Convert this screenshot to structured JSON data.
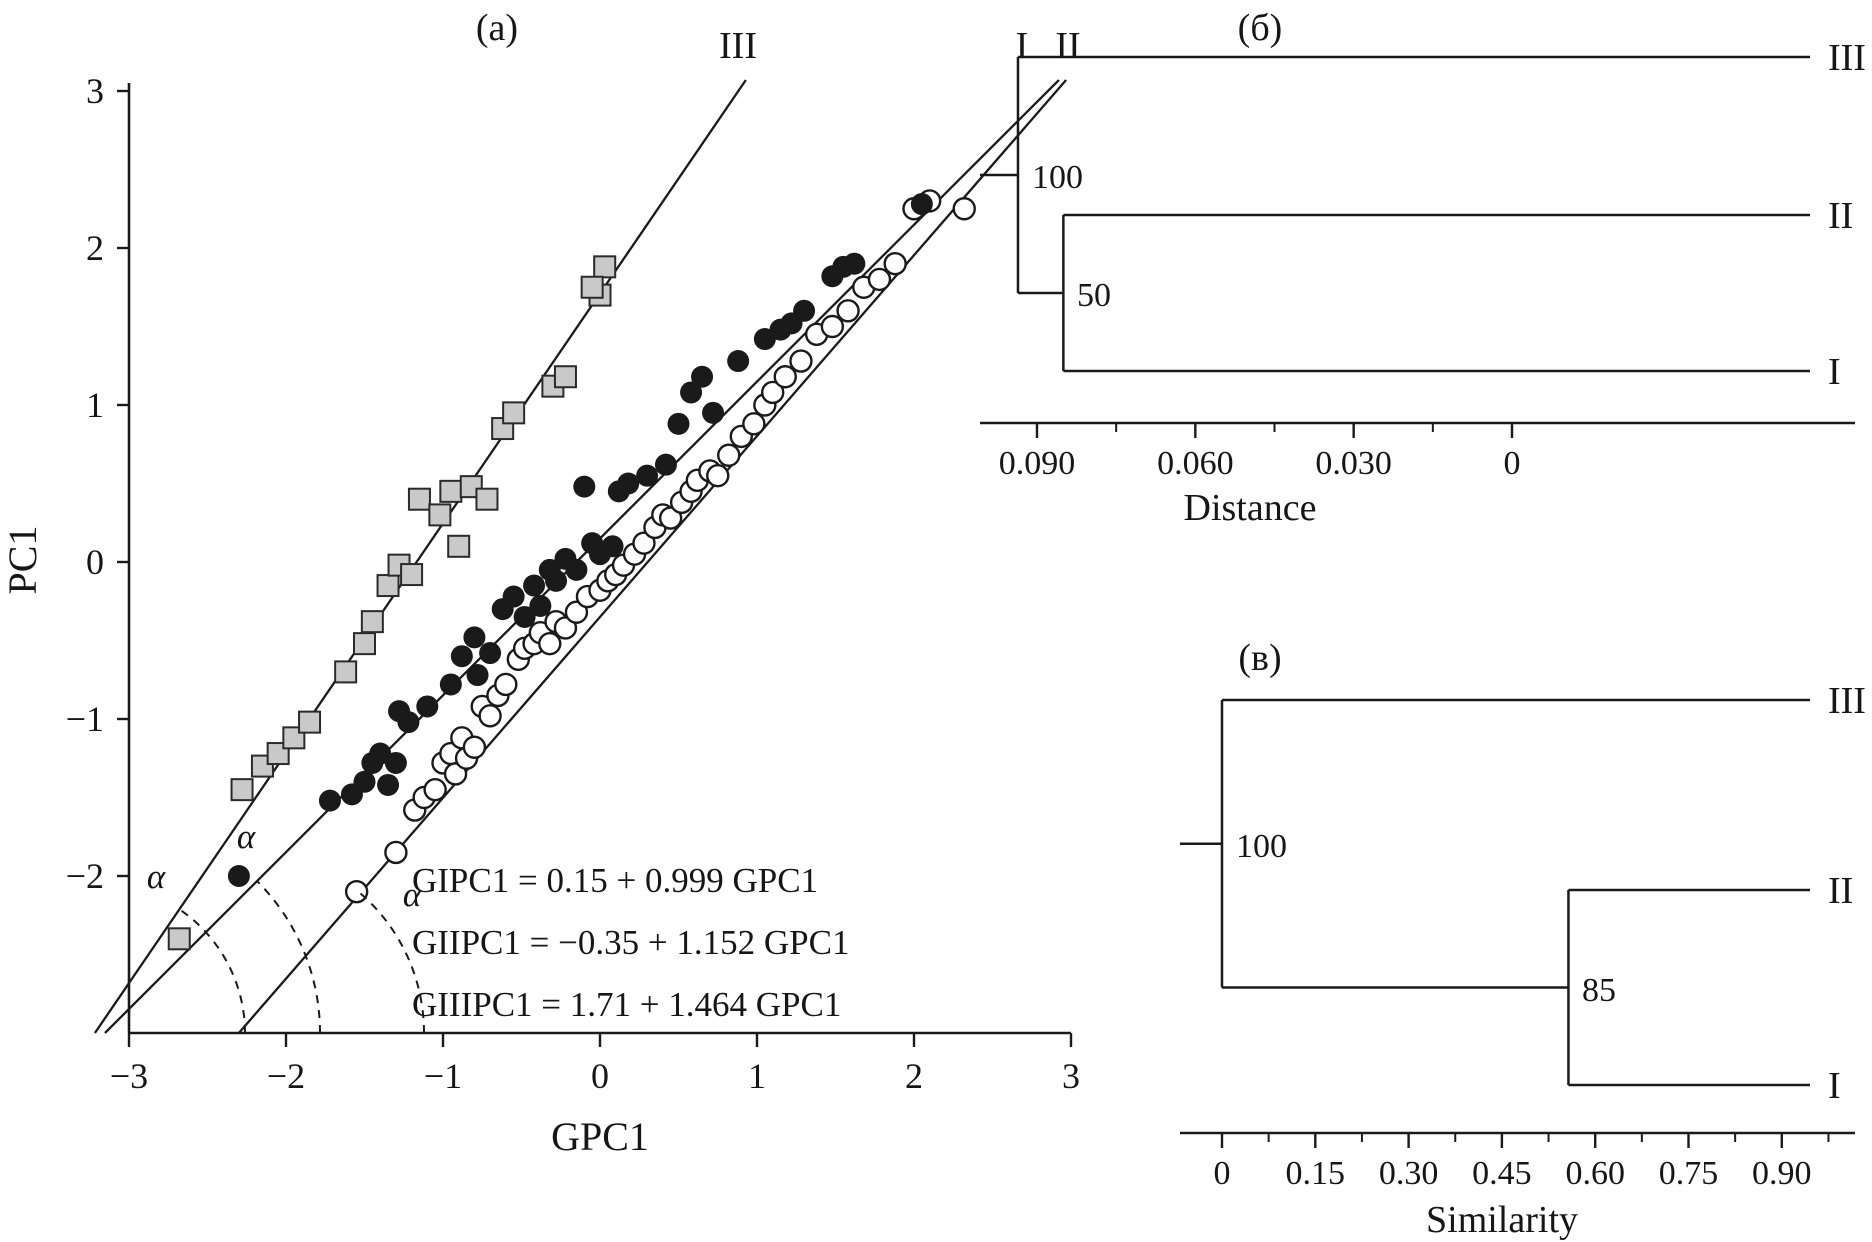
{
  "chart_data": [
    {
      "type": "scatter",
      "title": "(a)",
      "xlabel": "GPC1",
      "ylabel": "PC1",
      "xlim": [
        -3,
        3
      ],
      "ylim": [
        -3,
        3
      ],
      "grid": false,
      "x_ticks": [
        -3,
        -2,
        -1,
        0,
        1,
        2,
        3
      ],
      "x_tick_labels": [
        "−3",
        "−2",
        "−1",
        "0",
        "1",
        "2",
        "3"
      ],
      "y_ticks": [
        3,
        2,
        1,
        0,
        -1,
        -2
      ],
      "y_tick_labels": [
        "3",
        "2",
        "1",
        "0",
        "−1",
        "−2"
      ],
      "angle_label": "α",
      "lines": [
        {
          "label": "I",
          "intercept": 0.15,
          "slope": 0.999,
          "equation": "GIPC1 = 0.15 + 0.999 GPC1"
        },
        {
          "label": "II",
          "intercept": -0.35,
          "slope": 1.152,
          "equation": "GIIPC1 = −0.35 + 1.152 GPC1"
        },
        {
          "label": "III",
          "intercept": 1.71,
          "slope": 1.464,
          "equation": "GIIIPC1 = 1.71 + 1.464 GPC1"
        }
      ],
      "series": [
        {
          "name": "Group I",
          "marker": "filled-circle",
          "fill": "#1a1a1a",
          "stroke": "#1a1a1a",
          "points": [
            [
              -2.3,
              -2.0
            ],
            [
              -1.72,
              -1.52
            ],
            [
              -1.58,
              -1.48
            ],
            [
              -1.5,
              -1.4
            ],
            [
              -1.45,
              -1.28
            ],
            [
              -1.4,
              -1.22
            ],
            [
              -1.35,
              -1.42
            ],
            [
              -1.3,
              -1.28
            ],
            [
              -1.28,
              -0.95
            ],
            [
              -1.22,
              -1.02
            ],
            [
              -1.1,
              -0.92
            ],
            [
              -0.95,
              -0.78
            ],
            [
              -0.88,
              -0.6
            ],
            [
              -0.8,
              -0.48
            ],
            [
              -0.78,
              -0.72
            ],
            [
              -0.7,
              -0.58
            ],
            [
              -0.62,
              -0.3
            ],
            [
              -0.55,
              -0.22
            ],
            [
              -0.48,
              -0.35
            ],
            [
              -0.42,
              -0.15
            ],
            [
              -0.38,
              -0.28
            ],
            [
              -0.32,
              -0.05
            ],
            [
              -0.28,
              -0.12
            ],
            [
              -0.22,
              0.02
            ],
            [
              -0.15,
              -0.05
            ],
            [
              -0.1,
              0.48
            ],
            [
              -0.05,
              0.12
            ],
            [
              0.0,
              0.05
            ],
            [
              0.08,
              0.1
            ],
            [
              0.12,
              0.45
            ],
            [
              0.18,
              0.5
            ],
            [
              0.3,
              0.55
            ],
            [
              0.42,
              0.62
            ],
            [
              0.5,
              0.88
            ],
            [
              0.58,
              1.08
            ],
            [
              0.65,
              1.18
            ],
            [
              0.72,
              0.95
            ],
            [
              0.88,
              1.28
            ],
            [
              1.05,
              1.42
            ],
            [
              1.15,
              1.48
            ],
            [
              1.22,
              1.52
            ],
            [
              1.3,
              1.6
            ],
            [
              1.48,
              1.82
            ],
            [
              1.55,
              1.88
            ],
            [
              1.62,
              1.9
            ],
            [
              2.05,
              2.28
            ]
          ]
        },
        {
          "name": "Group II",
          "marker": "open-circle",
          "fill": "#ffffff",
          "stroke": "#1a1a1a",
          "points": [
            [
              -1.55,
              -2.1
            ],
            [
              -1.3,
              -1.85
            ],
            [
              -1.18,
              -1.58
            ],
            [
              -1.12,
              -1.5
            ],
            [
              -1.05,
              -1.45
            ],
            [
              -1.0,
              -1.28
            ],
            [
              -0.95,
              -1.22
            ],
            [
              -0.92,
              -1.35
            ],
            [
              -0.88,
              -1.12
            ],
            [
              -0.85,
              -1.25
            ],
            [
              -0.8,
              -1.18
            ],
            [
              -0.75,
              -0.92
            ],
            [
              -0.7,
              -0.98
            ],
            [
              -0.65,
              -0.85
            ],
            [
              -0.6,
              -0.78
            ],
            [
              -0.52,
              -0.62
            ],
            [
              -0.48,
              -0.55
            ],
            [
              -0.42,
              -0.52
            ],
            [
              -0.38,
              -0.45
            ],
            [
              -0.32,
              -0.52
            ],
            [
              -0.28,
              -0.38
            ],
            [
              -0.22,
              -0.42
            ],
            [
              -0.15,
              -0.32
            ],
            [
              -0.08,
              -0.22
            ],
            [
              0.0,
              -0.18
            ],
            [
              0.05,
              -0.12
            ],
            [
              0.1,
              -0.08
            ],
            [
              0.15,
              -0.02
            ],
            [
              0.22,
              0.05
            ],
            [
              0.28,
              0.12
            ],
            [
              0.35,
              0.22
            ],
            [
              0.4,
              0.3
            ],
            [
              0.45,
              0.28
            ],
            [
              0.52,
              0.38
            ],
            [
              0.58,
              0.45
            ],
            [
              0.62,
              0.52
            ],
            [
              0.7,
              0.58
            ],
            [
              0.75,
              0.55
            ],
            [
              0.82,
              0.68
            ],
            [
              0.9,
              0.8
            ],
            [
              0.98,
              0.88
            ],
            [
              1.05,
              1.0
            ],
            [
              1.1,
              1.08
            ],
            [
              1.18,
              1.18
            ],
            [
              1.28,
              1.28
            ],
            [
              1.38,
              1.45
            ],
            [
              1.48,
              1.5
            ],
            [
              1.58,
              1.6
            ],
            [
              1.68,
              1.75
            ],
            [
              1.78,
              1.8
            ],
            [
              1.88,
              1.9
            ],
            [
              2.0,
              2.25
            ],
            [
              2.1,
              2.3
            ],
            [
              2.32,
              2.25
            ]
          ]
        },
        {
          "name": "Group III",
          "marker": "gray-square",
          "fill": "#c9c9c9",
          "stroke": "#2a2a2a",
          "points": [
            [
              -2.68,
              -2.4
            ],
            [
              -2.28,
              -1.45
            ],
            [
              -2.15,
              -1.3
            ],
            [
              -2.05,
              -1.22
            ],
            [
              -1.95,
              -1.12
            ],
            [
              -1.85,
              -1.02
            ],
            [
              -1.62,
              -0.7
            ],
            [
              -1.5,
              -0.52
            ],
            [
              -1.45,
              -0.38
            ],
            [
              -1.35,
              -0.15
            ],
            [
              -1.28,
              -0.02
            ],
            [
              -1.2,
              -0.08
            ],
            [
              -1.15,
              0.4
            ],
            [
              -1.02,
              0.3
            ],
            [
              -0.95,
              0.45
            ],
            [
              -0.9,
              0.1
            ],
            [
              -0.82,
              0.48
            ],
            [
              -0.72,
              0.4
            ],
            [
              -0.62,
              0.85
            ],
            [
              -0.55,
              0.95
            ],
            [
              -0.3,
              1.12
            ],
            [
              -0.22,
              1.18
            ],
            [
              0.0,
              1.7
            ],
            [
              0.03,
              1.88
            ],
            [
              -0.05,
              1.75
            ]
          ]
        }
      ]
    },
    {
      "type": "dendrogram",
      "title": "(б)",
      "xlabel": "Distance",
      "leaves": [
        "III",
        "II",
        "I"
      ],
      "nodes": [
        {
          "label": "100",
          "joins": [
            "III",
            "II+I"
          ],
          "value": 0.0936
        },
        {
          "label": "50",
          "joins": [
            "II",
            "I"
          ],
          "value": 0.085
        }
      ],
      "axis": {
        "direction": "decreasing-right",
        "tick_values": [
          0.09,
          0.06,
          0.03,
          0
        ],
        "tick_labels": [
          "0.090",
          "0.060",
          "0.030",
          "0"
        ],
        "minor_values": [
          0.075,
          0.045,
          0.015
        ]
      }
    },
    {
      "type": "dendrogram",
      "title": "(в)",
      "xlabel": "Similarity",
      "leaves": [
        "III",
        "II",
        "I"
      ],
      "nodes": [
        {
          "label": "100",
          "joins": [
            "III",
            "II+I"
          ],
          "value": 0
        },
        {
          "label": "85",
          "joins": [
            "II",
            "I"
          ],
          "value": 0.557
        }
      ],
      "axis": {
        "direction": "increasing-right",
        "tick_values": [
          0,
          0.15,
          0.3,
          0.45,
          0.6,
          0.75,
          0.9
        ],
        "tick_labels": [
          "0",
          "0.15",
          "0.30",
          "0.45",
          "0.60",
          "0.75",
          "0.90"
        ],
        "minor_values": [
          0.075,
          0.225,
          0.375,
          0.525,
          0.675,
          0.825,
          0.975
        ]
      }
    }
  ]
}
